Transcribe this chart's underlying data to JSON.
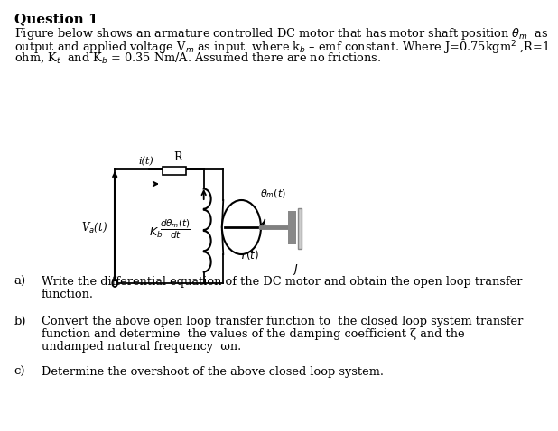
{
  "title": "Question 1",
  "line1": "Figure below shows an armature controlled DC motor that has motor shaft position $\\theta_m$  as",
  "line2": "output and applied voltage V$_m$ as input  where k$_b$ – emf constant. Where J=0.75kgm$^2$ ,R=1",
  "line3": "ohm, K$_t$  and K$_b$ = 0.35 Nm/A. Assumed there are no frictions.",
  "a_label": "a)",
  "a_line1": "Write the differential equation of the DC motor and obtain the open loop transfer",
  "a_line2": "function.",
  "b_label": "b)",
  "b_line1": "Convert the above open loop transfer function to  the closed loop system transfer",
  "b_line2": "function and determine  the values of the damping coefficient ζ and the",
  "b_line3": "undamped natural frequency  ωn.",
  "c_label": "c)",
  "c_line1": "Determine the overshoot of the above closed loop system.",
  "bg_color": "#ffffff",
  "text_color": "#000000"
}
